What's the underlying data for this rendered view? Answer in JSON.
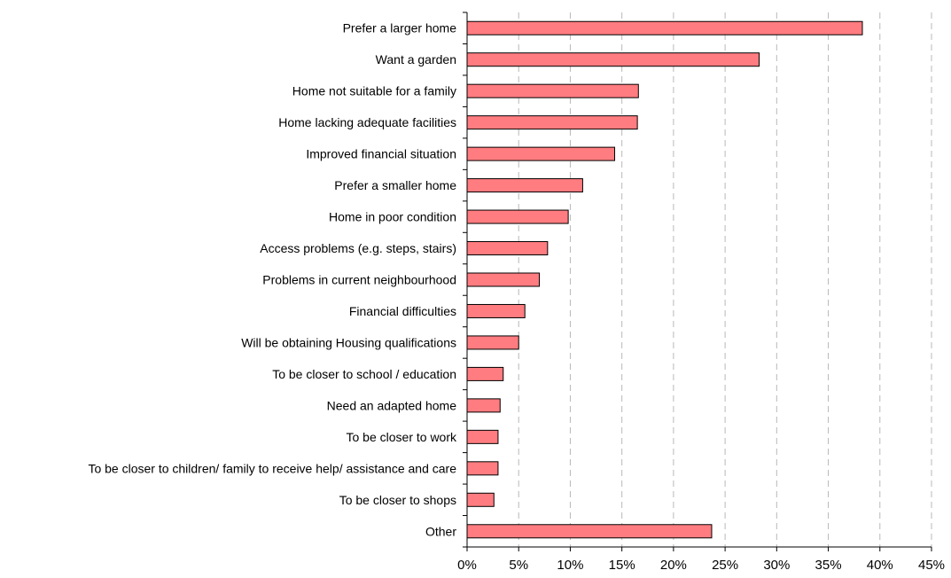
{
  "chart_data": {
    "type": "bar",
    "orientation": "horizontal",
    "categories": [
      "Prefer a larger home",
      "Want a garden",
      "Home not suitable for a family",
      "Home lacking adequate facilities",
      "Improved financial situation",
      "Prefer a smaller home",
      "Home in poor condition",
      "Access problems (e.g. steps, stairs)",
      "Problems in current neighbourhood",
      "Financial difficulties",
      "Will be obtaining Housing qualifications",
      "To be closer to school / education",
      "Need an adapted home",
      "To be closer to work",
      "To be closer to children/ family to receive help/ assistance and care",
      "To be closer to shops",
      "Other"
    ],
    "values": [
      38.3,
      28.3,
      16.6,
      16.5,
      14.3,
      11.2,
      9.8,
      7.8,
      7.0,
      5.6,
      5.0,
      3.5,
      3.2,
      3.0,
      3.0,
      2.6,
      23.7
    ],
    "xlim": [
      0,
      45
    ],
    "xticks": [
      "0%",
      "5%",
      "10%",
      "15%",
      "20%",
      "25%",
      "30%",
      "35%",
      "40%",
      "45%"
    ],
    "xtick_values": [
      0,
      5,
      10,
      15,
      20,
      25,
      30,
      35,
      40,
      45
    ],
    "grid": true,
    "bar_color": "#ff7c80",
    "title": "",
    "xlabel": "",
    "ylabel": ""
  }
}
